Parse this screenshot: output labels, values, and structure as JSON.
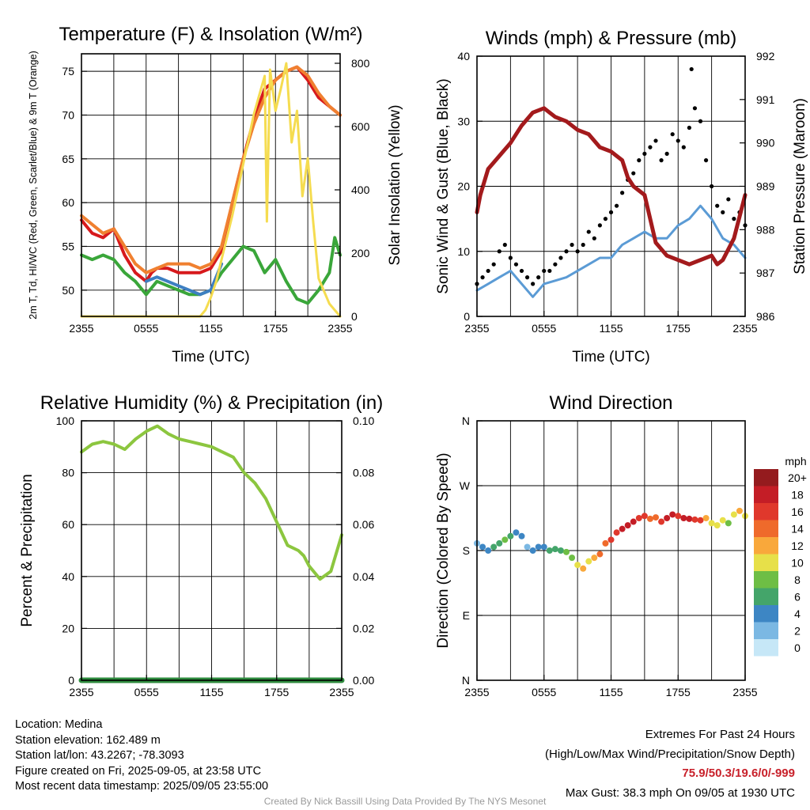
{
  "chart_data": [
    {
      "type": "line",
      "title": "Temperature (F) & Insolation (W/m²)",
      "xlabel": "Time (UTC)",
      "ylabel": "2m T, Td, HI/WC (Red, Green, Scarlet/Blue) & 9m T (Orange)",
      "y2label": "Solar Insolation (Yellow)",
      "x_ticks": [
        "2355",
        "0555",
        "1155",
        "1755",
        "2355"
      ],
      "ylim": [
        47,
        77
      ],
      "y_ticks": [
        50,
        55,
        60,
        65,
        70,
        75
      ],
      "y2lim": [
        0,
        830
      ],
      "y2_ticks": [
        0,
        200,
        400,
        600,
        800
      ],
      "grid": true,
      "series": [
        {
          "name": "Red",
          "axis": "left",
          "color": "#d7191c",
          "x": [
            0,
            1,
            2,
            3,
            4,
            5,
            6,
            6.5,
            7,
            8,
            9,
            10,
            11,
            12,
            13,
            14,
            15,
            16,
            17,
            18,
            19,
            20,
            21,
            22,
            23,
            24
          ],
          "y": [
            58,
            56.5,
            56,
            57,
            54,
            52,
            51,
            52,
            52.5,
            52.5,
            52,
            52,
            52,
            52.5,
            54.5,
            60,
            65,
            69.5,
            73,
            74,
            75,
            75.5,
            74,
            72,
            71,
            70
          ]
        },
        {
          "name": "Green",
          "axis": "left",
          "color": "#3aa63a",
          "x": [
            0,
            1,
            2,
            3,
            4,
            5,
            6,
            7,
            8,
            9,
            10,
            11,
            12,
            13,
            14,
            15,
            16,
            17,
            18,
            19,
            20,
            21,
            22,
            23,
            23.5,
            24
          ],
          "y": [
            54,
            53.5,
            54,
            53.5,
            52,
            51,
            49.5,
            51,
            50.5,
            50,
            49.5,
            49.5,
            50,
            52,
            53.5,
            55,
            54.5,
            52,
            53.5,
            51,
            49,
            48.5,
            50,
            52,
            56,
            54
          ]
        },
        {
          "name": "Scarlet/Blue",
          "axis": "left",
          "color": "#3d7fc2",
          "x": [
            6,
            7,
            8,
            9,
            10,
            11,
            12,
            13
          ],
          "y": [
            51,
            51.5,
            51,
            50.5,
            50,
            49.5,
            50,
            53
          ]
        },
        {
          "name": "Orange",
          "axis": "left",
          "color": "#f08030",
          "x": [
            0,
            1,
            2,
            3,
            4,
            5,
            6,
            7,
            8,
            9,
            10,
            11,
            12,
            13,
            14,
            15,
            16,
            17,
            18,
            19,
            20,
            21,
            22,
            23,
            24
          ],
          "y": [
            58.5,
            57.5,
            56.5,
            57,
            55,
            53,
            52,
            52.5,
            53,
            53,
            53,
            52.5,
            53,
            55,
            60,
            65,
            69,
            72,
            74,
            75,
            75.5,
            74.5,
            72.5,
            71,
            70
          ]
        },
        {
          "name": "Yellow",
          "axis": "right",
          "color": "#f5dc50",
          "x": [
            0,
            2,
            4,
            6,
            8,
            10,
            11,
            11.5,
            12,
            12.5,
            13,
            14,
            15,
            15.5,
            16,
            16.5,
            17,
            17.2,
            17.5,
            18,
            18.5,
            19,
            19.5,
            20,
            20.5,
            21,
            21.5,
            22,
            23,
            24
          ],
          "y": [
            0,
            0,
            0,
            0,
            0,
            0,
            0,
            20,
            60,
            110,
            180,
            320,
            480,
            560,
            640,
            700,
            760,
            300,
            780,
            650,
            720,
            800,
            550,
            650,
            380,
            500,
            300,
            120,
            40,
            0
          ]
        }
      ]
    },
    {
      "type": "line",
      "title": "Winds (mph) & Pressure (mb)",
      "xlabel": "Time (UTC)",
      "ylabel": "Sonic Wind & Gust (Blue, Black)",
      "y2label": "Station Pressure (Maroon)",
      "x_ticks": [
        "2355",
        "0555",
        "1155",
        "1755",
        "2355"
      ],
      "ylim": [
        0,
        40
      ],
      "y_ticks": [
        0,
        10,
        20,
        30,
        40
      ],
      "y2lim": [
        986,
        992
      ],
      "y2_ticks": [
        986,
        987,
        988,
        989,
        990,
        991,
        992
      ],
      "grid": true,
      "series": [
        {
          "name": "Sonic Wind (Blue)",
          "axis": "left",
          "color": "#5b9bd5",
          "x": [
            0,
            1,
            2,
            3,
            4,
            5,
            6,
            7,
            8,
            9,
            10,
            11,
            12,
            13,
            14,
            15,
            16,
            17,
            18,
            19,
            20,
            21,
            22,
            23,
            24
          ],
          "y": [
            4,
            5,
            6,
            7,
            5,
            3,
            5,
            5.5,
            6,
            7,
            8,
            9,
            9,
            11,
            12,
            13,
            12,
            12,
            14,
            15,
            17,
            15,
            12,
            11,
            9
          ]
        },
        {
          "name": "Gust (Black)",
          "axis": "left",
          "color": "#000000",
          "mode": "markers",
          "x": [
            0,
            0.5,
            1,
            1.5,
            2,
            2.5,
            3,
            3.5,
            4,
            4.5,
            5,
            5.5,
            6,
            6.5,
            7,
            7.5,
            8,
            8.5,
            9,
            9.5,
            10,
            10.5,
            11,
            11.5,
            12,
            12.5,
            13,
            13.5,
            14,
            14.5,
            15,
            15.5,
            16,
            16.5,
            17,
            17.5,
            18,
            18.5,
            19,
            19.2,
            19.5,
            20,
            20.5,
            21,
            21.5,
            22,
            22.5,
            23,
            23.5,
            24
          ],
          "y": [
            5,
            6,
            7,
            8,
            10,
            11,
            9,
            8,
            7,
            6,
            5,
            6,
            7,
            7,
            8,
            9,
            10,
            11,
            10,
            11,
            13,
            12,
            14,
            15,
            16,
            17,
            19,
            21,
            22,
            24,
            25,
            26,
            27,
            24,
            25,
            28,
            27,
            26,
            29,
            38,
            32,
            30,
            24,
            20,
            17,
            16,
            18,
            15,
            16,
            14
          ]
        },
        {
          "name": "Station Pressure (Maroon)",
          "axis": "right",
          "color": "#a31a1c",
          "x": [
            0,
            0.3,
            1,
            2,
            3,
            4,
            5,
            6,
            6.5,
            7,
            8,
            9,
            10,
            11,
            12,
            13,
            13.5,
            14,
            15,
            16,
            17,
            18,
            19,
            20,
            21,
            21.5,
            22,
            23,
            24
          ],
          "y": [
            988.4,
            988.8,
            989.4,
            989.7,
            990.0,
            990.4,
            990.7,
            990.8,
            990.7,
            990.6,
            990.5,
            990.3,
            990.2,
            989.9,
            989.8,
            989.6,
            989.2,
            989.0,
            988.8,
            987.7,
            987.4,
            987.3,
            987.2,
            987.3,
            987.4,
            987.2,
            987.3,
            987.8,
            988.8
          ]
        }
      ]
    },
    {
      "type": "line",
      "title": "Relative Humidity (%) & Precipitation (in)",
      "ylabel": "Percent & Precipitation",
      "x_ticks": [
        "2355",
        "0555",
        "1155",
        "1755",
        "2355"
      ],
      "ylim": [
        0,
        100
      ],
      "y_ticks": [
        0,
        20,
        40,
        60,
        80,
        100
      ],
      "y2lim": [
        0,
        0.1
      ],
      "y2_ticks": [
        "0.00",
        "0.02",
        "0.04",
        "0.06",
        "0.08",
        "0.10"
      ],
      "grid": true,
      "series": [
        {
          "name": "Relative Humidity",
          "axis": "left",
          "color": "#8cc63f",
          "x": [
            0,
            1,
            2,
            3,
            4,
            5,
            6,
            7,
            8,
            9,
            10,
            11,
            12,
            13,
            14,
            15,
            16,
            17,
            18,
            19,
            20,
            20.5,
            21,
            22,
            23,
            24
          ],
          "y": [
            88,
            91,
            92,
            91,
            89,
            93,
            96,
            98,
            95,
            93,
            92,
            91,
            90,
            88,
            86,
            80,
            76,
            70,
            61,
            52,
            50,
            48,
            44,
            39,
            42,
            56
          ]
        },
        {
          "name": "Precipitation",
          "axis": "right",
          "color": "#2e8b3e",
          "x": [
            0,
            24
          ],
          "y": [
            0,
            0
          ]
        }
      ]
    },
    {
      "type": "scatter",
      "title": "Wind Direction",
      "ylabel": "Direction (Colored By Speed)",
      "x_ticks": [
        "2355",
        "0555",
        "1155",
        "1755",
        "2355"
      ],
      "y_ticks": [
        "N",
        "E",
        "S",
        "W",
        "N"
      ],
      "ylim": [
        0,
        360
      ],
      "grid": true,
      "colorbar": {
        "title": "mph",
        "labels": [
          "0",
          "2",
          "4",
          "6",
          "8",
          "10",
          "12",
          "14",
          "16",
          "18",
          "20+"
        ],
        "colors": [
          "#c6e7f7",
          "#7bb8e3",
          "#3d86c4",
          "#44a56a",
          "#6ebe45",
          "#e7e049",
          "#f9a83b",
          "#ef6a2b",
          "#e0382c",
          "#c41d26",
          "#941b1e"
        ]
      },
      "x": [
        0,
        0.5,
        1,
        1.5,
        2,
        2.5,
        3,
        3.5,
        4,
        4.5,
        5,
        5.5,
        6,
        6.5,
        7,
        7.5,
        8,
        8.5,
        9,
        9.5,
        10,
        10.5,
        11,
        11.5,
        12,
        12.5,
        13,
        13.5,
        14,
        14.5,
        15,
        15.5,
        16,
        16.5,
        17,
        17.5,
        18,
        18.5,
        19,
        19.5,
        20,
        20.5,
        21,
        21.5,
        22,
        22.5,
        23,
        23.5,
        24
      ],
      "y": [
        190,
        185,
        180,
        185,
        190,
        195,
        200,
        205,
        200,
        185,
        180,
        185,
        185,
        180,
        182,
        180,
        178,
        170,
        160,
        155,
        165,
        170,
        175,
        190,
        195,
        205,
        210,
        215,
        220,
        225,
        228,
        224,
        226,
        220,
        225,
        230,
        228,
        225,
        224,
        223,
        222,
        225,
        218,
        215,
        222,
        218,
        230,
        235,
        228
      ],
      "speed": [
        2,
        3,
        4,
        5,
        6,
        7,
        6,
        4,
        3,
        2,
        3,
        4,
        4,
        5,
        5,
        6,
        7,
        8,
        10,
        11,
        10,
        12,
        13,
        14,
        15,
        16,
        17,
        18,
        17,
        16,
        15,
        13,
        14,
        16,
        18,
        17,
        16,
        18,
        17,
        16,
        15,
        11,
        10,
        9,
        9,
        8,
        10,
        11,
        10
      ]
    }
  ],
  "footer": {
    "location": "Location: Medina",
    "elevation": "Station elevation: 162.489 m",
    "latlon": "Station lat/lon: 43.2267; -78.3093",
    "created": "Figure created on Fri, 2025-09-05, at 23:58 UTC",
    "recent": "Most recent data timestamp: 2025/09/05 23:55:00",
    "extremes_title": "Extremes For Past 24 Hours",
    "extremes_legend": "(High/Low/Max Wind/Precipitation/Snow Depth)",
    "extremes_values": "75.9/50.3/19.6/0/-999",
    "max_gust": "Max Gust: 38.3 mph On 09/05 at 1930 UTC",
    "credit": "Created By Nick Bassill Using Data Provided By The NYS Mesonet"
  }
}
